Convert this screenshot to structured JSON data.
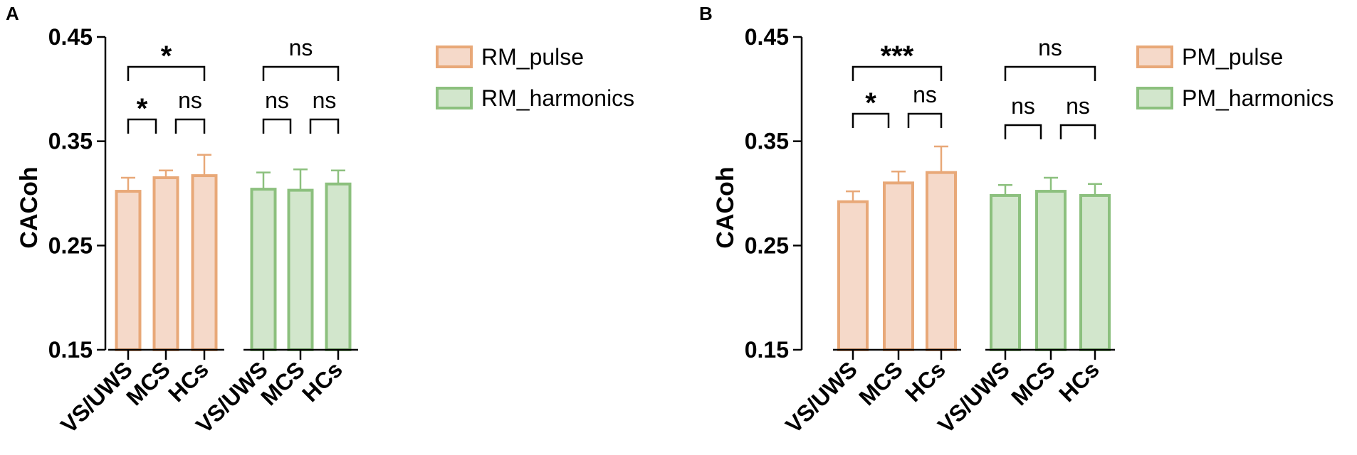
{
  "colors": {
    "pulse_fill": "#f5d9c9",
    "pulse_stroke": "#e8a878",
    "harmonics_fill": "#d2e6cc",
    "harmonics_stroke": "#8cc07e",
    "axis": "#000000"
  },
  "chart_data": [
    {
      "type": "bar",
      "panel": "A",
      "ylabel": "CACoh",
      "ylim": [
        0.15,
        0.45
      ],
      "yticks": [
        "0.15",
        "0.25",
        "0.35",
        "0.45"
      ],
      "categories": [
        "VS/UWS",
        "MCS",
        "HCs"
      ],
      "grid": false,
      "legend_position": "top-right",
      "series": [
        {
          "name": "RM_pulse",
          "values": [
            0.302,
            0.315,
            0.317
          ],
          "errors": [
            0.013,
            0.007,
            0.02
          ]
        },
        {
          "name": "RM_harmonics",
          "values": [
            0.304,
            0.303,
            0.309
          ],
          "errors": [
            0.016,
            0.02,
            0.013
          ]
        }
      ],
      "significance": [
        {
          "series": 0,
          "from": 0,
          "to": 2,
          "label": "*"
        },
        {
          "series": 0,
          "from": 0,
          "to": 1,
          "label": "*"
        },
        {
          "series": 0,
          "from": 1,
          "to": 2,
          "label": "ns"
        },
        {
          "series": 1,
          "from": 0,
          "to": 2,
          "label": "ns"
        },
        {
          "series": 1,
          "from": 0,
          "to": 1,
          "label": "ns"
        },
        {
          "series": 1,
          "from": 1,
          "to": 2,
          "label": "ns"
        }
      ]
    },
    {
      "type": "bar",
      "panel": "B",
      "ylabel": "CACoh",
      "ylim": [
        0.15,
        0.45
      ],
      "yticks": [
        "0.15",
        "0.25",
        "0.35",
        "0.45"
      ],
      "categories": [
        "VS/UWS",
        "MCS",
        "HCs"
      ],
      "grid": false,
      "legend_position": "top-right",
      "series": [
        {
          "name": "PM_pulse",
          "values": [
            0.292,
            0.31,
            0.32
          ],
          "errors": [
            0.01,
            0.011,
            0.025
          ]
        },
        {
          "name": "PM_harmonics",
          "values": [
            0.298,
            0.302,
            0.298
          ],
          "errors": [
            0.01,
            0.013,
            0.011
          ]
        }
      ],
      "significance": [
        {
          "series": 0,
          "from": 0,
          "to": 2,
          "label": "***"
        },
        {
          "series": 0,
          "from": 0,
          "to": 1,
          "label": "*"
        },
        {
          "series": 0,
          "from": 1,
          "to": 2,
          "label": "ns"
        },
        {
          "series": 1,
          "from": 0,
          "to": 2,
          "label": "ns"
        },
        {
          "series": 1,
          "from": 0,
          "to": 1,
          "label": "ns"
        },
        {
          "series": 1,
          "from": 1,
          "to": 2,
          "label": "ns"
        }
      ]
    }
  ]
}
